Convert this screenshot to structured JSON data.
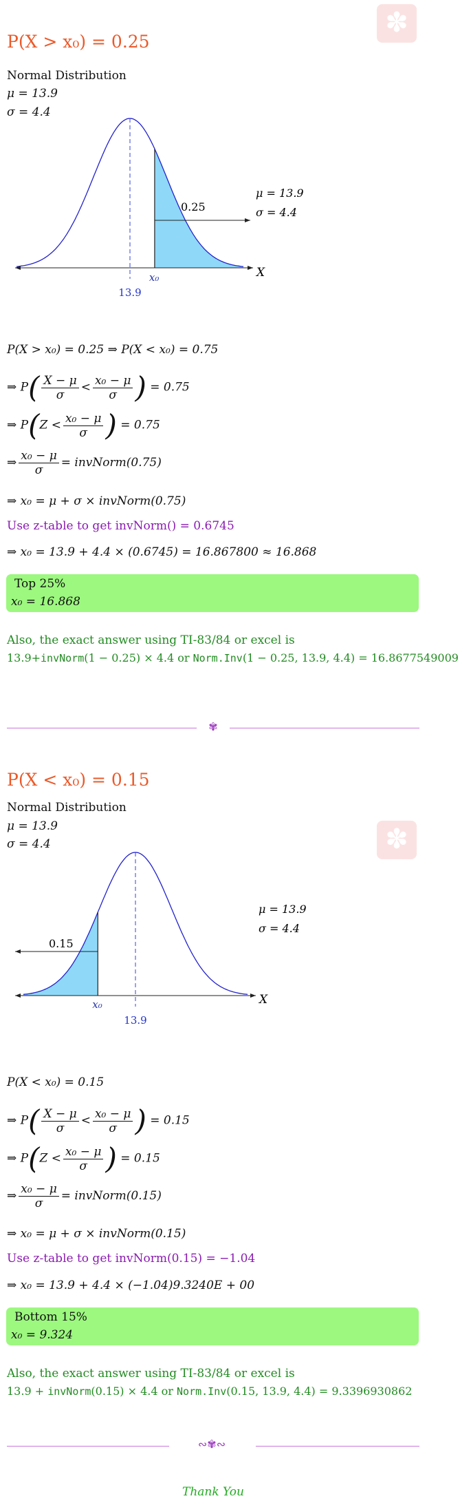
{
  "watermark_icon": "flower-icon",
  "section1": {
    "title": "P(X > x₀) = 0.25",
    "dist_label": "Normal Distribution",
    "mu_label": "μ = 13.9",
    "sigma_label": "σ = 4.4",
    "chart": {
      "type": "area",
      "mean": 13.9,
      "sd": 4.4,
      "shaded": "right",
      "area_label": "0.25",
      "x_axis_label": "X",
      "mean_tick_label": "13.9",
      "x0_label": "x₀",
      "legend_mu": "μ = 13.9",
      "legend_sigma": "σ = 4.4",
      "shade_color": "#8fd8f8",
      "curve_color": "#2222cc"
    },
    "step1": "P(X > x₀) = 0.25 ⇒ P(X < x₀) = 0.75",
    "step2_prefix": "⇒ P",
    "step2_num1": "X − μ",
    "step2_den1": "σ",
    "step2_lt": "<",
    "step2_num2": "x₀ − μ",
    "step2_den2": "σ",
    "step2_suffix": "= 0.75",
    "step3_prefix": "⇒ P",
    "step3_z": "Z <",
    "step3_num": "x₀ − μ",
    "step3_den": "σ",
    "step3_suffix": "= 0.75",
    "step4_prefix": "⇒",
    "step4_num": "x₀ − μ",
    "step4_den": "σ",
    "step4_suffix": "= invNorm(0.75)",
    "step5": "⇒ x₀ = μ + σ × invNorm(0.75)",
    "ztable_text": "Use z-table to get invNorm() = 0.6745",
    "step6": "⇒ x₀ = 13.9 + 4.4 × (0.6745) = 16.867800 ≈ 16.868",
    "box_line1": "Top 25%",
    "box_line2": "x₀ = 16.868",
    "exact_intro": "Also, the exact answer using TI-83/84 or excel is",
    "exact_a": "13.9+",
    "exact_b": "invNorm",
    "exact_c": "(1 − 0.25) × 4.4 or ",
    "exact_d": "Norm.Inv",
    "exact_e": "(1 − 0.25, 13.9, 4.4) = 16.8677549009",
    "divider_ornament": "✾"
  },
  "section2": {
    "title": "P(X < x₀) = 0.15",
    "dist_label": "Normal Distribution",
    "mu_label": "μ = 13.9",
    "sigma_label": "σ = 4.4",
    "chart": {
      "type": "area",
      "mean": 13.9,
      "sd": 4.4,
      "shaded": "left",
      "area_label": "0.15",
      "x_axis_label": "X",
      "mean_tick_label": "13.9",
      "x0_label": "x₀",
      "legend_mu": "μ = 13.9",
      "legend_sigma": "σ = 4.4",
      "shade_color": "#8fd8f8",
      "curve_color": "#2222cc"
    },
    "step1": "P(X < x₀) = 0.15",
    "step2_prefix": "⇒ P",
    "step2_num1": "X − μ",
    "step2_den1": "σ",
    "step2_lt": "<",
    "step2_num2": "x₀ − μ",
    "step2_den2": "σ",
    "step2_suffix": "= 0.15",
    "step3_prefix": "⇒ P",
    "step3_z": "Z <",
    "step3_num": "x₀ − μ",
    "step3_den": "σ",
    "step3_suffix": "= 0.15",
    "step4_prefix": "⇒",
    "step4_num": "x₀ − μ",
    "step4_den": "σ",
    "step4_suffix": "= invNorm(0.15)",
    "step5": "⇒ x₀ = μ + σ × invNorm(0.15)",
    "ztable_text": "Use z-table to get invNorm(0.15) = −1.04",
    "step6": "⇒ x₀ = 13.9 + 4.4 × (−1.04)9.3240E + 00",
    "box_line1": "Bottom 15%",
    "box_line2": "x₀ = 9.324",
    "exact_intro": "Also, the exact answer using TI-83/84 or excel is",
    "exact_a": "13.9 + ",
    "exact_b": "invNorm",
    "exact_c": "(0.15) × 4.4 or ",
    "exact_d": "Norm.Inv",
    "exact_e": "(0.15, 13.9, 4.4) = 9.3396930862",
    "divider_ornament": "∾✾∾"
  },
  "thanks": "Thank You"
}
